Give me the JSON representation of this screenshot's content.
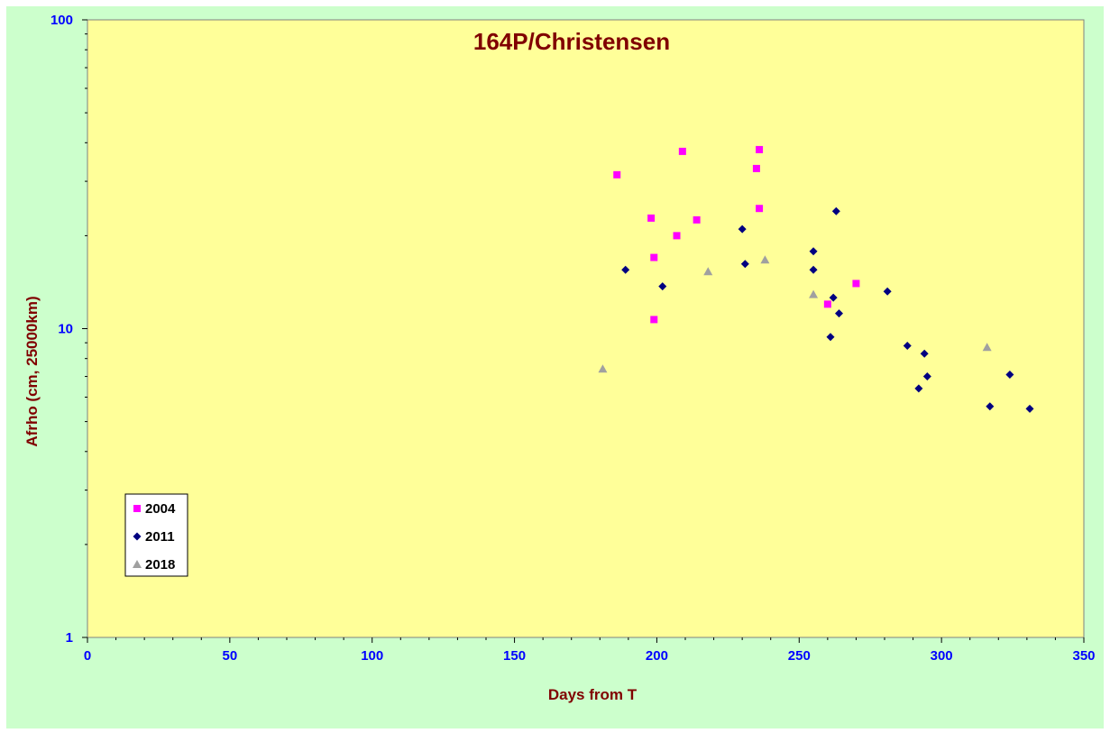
{
  "chart_data": {
    "type": "scatter",
    "title": "164P/Christensen",
    "xlabel": "Days from T",
    "ylabel": "Afrho (cm, 25000km)",
    "xlim": [
      0,
      350
    ],
    "ylim": [
      1,
      100
    ],
    "yscale": "log",
    "x_ticks": [
      "0",
      "50",
      "100",
      "150",
      "200",
      "250",
      "300",
      "350"
    ],
    "y_ticks": [
      "1",
      "10",
      "100"
    ],
    "grid": false,
    "legend_position": "bottom-left",
    "colors": {
      "plot_background": "#ffff99",
      "chart_background": "#ccffcc",
      "title": "#800000",
      "tick_labels": "#0000ff"
    },
    "series": [
      {
        "name": "2004",
        "marker": "square",
        "color": "#ff00ff",
        "points": [
          [
            186,
            31.5
          ],
          [
            198,
            22.8
          ],
          [
            199,
            17.0
          ],
          [
            199,
            10.7
          ],
          [
            207,
            20.0
          ],
          [
            209,
            37.5
          ],
          [
            214,
            22.5
          ],
          [
            235,
            33.0
          ],
          [
            236,
            38.0
          ],
          [
            236,
            24.5
          ],
          [
            260,
            12.0
          ],
          [
            270,
            14.0
          ]
        ]
      },
      {
        "name": "2011",
        "marker": "diamond",
        "color": "#000080",
        "points": [
          [
            189,
            15.5
          ],
          [
            202,
            13.7
          ],
          [
            230,
            21.0
          ],
          [
            231,
            16.2
          ],
          [
            255,
            17.8
          ],
          [
            255,
            15.5
          ],
          [
            262,
            12.6
          ],
          [
            263,
            24.0
          ],
          [
            264,
            11.2
          ],
          [
            261,
            9.4
          ],
          [
            281,
            13.2
          ],
          [
            288,
            8.8
          ],
          [
            294,
            8.3
          ],
          [
            295,
            7.0
          ],
          [
            292,
            6.4
          ],
          [
            317,
            5.6
          ],
          [
            324,
            7.1
          ],
          [
            331,
            5.5
          ]
        ]
      },
      {
        "name": "2018",
        "marker": "triangle",
        "color": "#a0a0a0",
        "points": [
          [
            181,
            7.4
          ],
          [
            218,
            15.3
          ],
          [
            238,
            16.7
          ],
          [
            255,
            12.9
          ],
          [
            316,
            8.7
          ]
        ]
      }
    ]
  }
}
